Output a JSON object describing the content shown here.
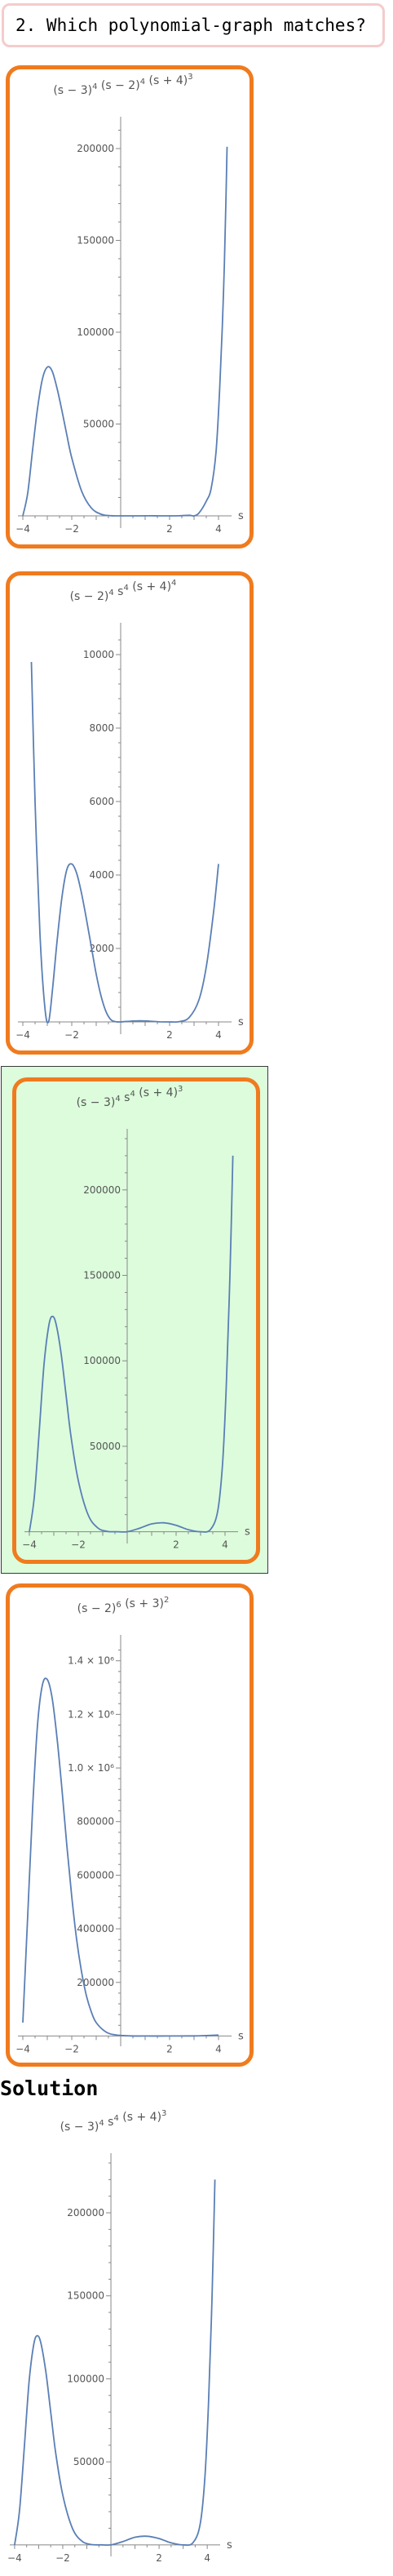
{
  "question": {
    "text": "2. Which polynomial-graph matches?"
  },
  "colors": {
    "curve": "#5a7fb5",
    "card_border": "#f07b1e",
    "selected_bg": "#dcfcdc",
    "question_border": "#f4cccc"
  },
  "options": [
    {
      "label_base": [
        "(s − 3)",
        "(s − 2)",
        "(s + 4)"
      ],
      "label_exp": [
        "4",
        "4",
        "3"
      ],
      "selected": false,
      "chart_data": {
        "type": "line",
        "xlabel": "s",
        "xlim": [
          -4.2,
          4.4
        ],
        "ylim": [
          -4000,
          212000
        ],
        "x_ticks": [
          -4,
          -2,
          2,
          4
        ],
        "y_ticks": [
          50000,
          100000,
          150000,
          200000
        ],
        "y_tick_labels": [
          "50000",
          "100000",
          "150000",
          "200000"
        ],
        "points": [
          [
            -4,
            0
          ],
          [
            -3.8,
            12400
          ],
          [
            -3.6,
            36000
          ],
          [
            -3.4,
            58400
          ],
          [
            -3.2,
            74500
          ],
          [
            -3,
            81000
          ],
          [
            -2.8,
            78800
          ],
          [
            -2.6,
            69400
          ],
          [
            -2.4,
            57200
          ],
          [
            -2.2,
            44000
          ],
          [
            -2,
            31600
          ],
          [
            -1.6,
            13600
          ],
          [
            -1.2,
            4300
          ],
          [
            -0.8,
            900
          ],
          [
            -0.4,
            90
          ],
          [
            0,
            0
          ],
          [
            0.4,
            10
          ],
          [
            0.8,
            20
          ],
          [
            1.2,
            30
          ],
          [
            1.6,
            10
          ],
          [
            2,
            0
          ],
          [
            2.4,
            40
          ],
          [
            2.8,
            300
          ],
          [
            3,
            0
          ],
          [
            3.2,
            1500
          ],
          [
            3.5,
            8000
          ],
          [
            3.7,
            15000
          ],
          [
            3.9,
            35000
          ],
          [
            4.05,
            70000
          ],
          [
            4.2,
            120000
          ],
          [
            4.3,
            170000
          ],
          [
            4.35,
            201000
          ]
        ]
      }
    },
    {
      "label_base": [
        "(s − 2)",
        "s",
        "(s + 4)"
      ],
      "label_exp": [
        "4",
        "4",
        "4"
      ],
      "selected": false,
      "chart_data": {
        "type": "line",
        "xlabel": "s",
        "xlim": [
          -4.2,
          4.4
        ],
        "ylim": [
          -200,
          10600
        ],
        "x_ticks": [
          -4,
          -2,
          2,
          4
        ],
        "y_ticks": [
          2000,
          4000,
          6000,
          8000,
          10000
        ],
        "y_tick_labels": [
          "2000",
          "4000",
          "6000",
          "8000",
          "10000"
        ],
        "points": [
          [
            -3.65,
            9800
          ],
          [
            -3.5,
            6000
          ],
          [
            -3.3,
            2400
          ],
          [
            -3.1,
            400
          ],
          [
            -2.95,
            0
          ],
          [
            -2.8,
            800
          ],
          [
            -2.6,
            2200
          ],
          [
            -2.4,
            3400
          ],
          [
            -2.2,
            4150
          ],
          [
            -2,
            4300
          ],
          [
            -1.8,
            4050
          ],
          [
            -1.6,
            3500
          ],
          [
            -1.4,
            2800
          ],
          [
            -1.2,
            2050
          ],
          [
            -1,
            1300
          ],
          [
            -0.8,
            700
          ],
          [
            -0.6,
            280
          ],
          [
            -0.4,
            60
          ],
          [
            -0.2,
            5
          ],
          [
            0,
            0
          ],
          [
            0.4,
            20
          ],
          [
            0.8,
            30
          ],
          [
            1.2,
            20
          ],
          [
            1.6,
            3
          ],
          [
            2,
            0
          ],
          [
            2.4,
            8
          ],
          [
            2.8,
            120
          ],
          [
            3.2,
            600
          ],
          [
            3.5,
            1500
          ],
          [
            3.8,
            3000
          ],
          [
            4,
            4300
          ]
        ]
      }
    },
    {
      "label_base": [
        "(s − 3)",
        "s",
        "(s + 4)"
      ],
      "label_exp": [
        "4",
        "4",
        "3"
      ],
      "selected": true,
      "chart_data": {
        "type": "line",
        "xlabel": "s",
        "xlim": [
          -4.2,
          4.4
        ],
        "ylim": [
          -4000,
          230000
        ],
        "x_ticks": [
          -4,
          -2,
          2,
          4
        ],
        "y_ticks": [
          50000,
          100000,
          150000,
          200000
        ],
        "y_tick_labels": [
          "50000",
          "100000",
          "150000",
          "200000"
        ],
        "points": [
          [
            -4,
            0
          ],
          [
            -3.8,
            20000
          ],
          [
            -3.6,
            58000
          ],
          [
            -3.4,
            98000
          ],
          [
            -3.2,
            121000
          ],
          [
            -3.05,
            126000
          ],
          [
            -2.9,
            121000
          ],
          [
            -2.7,
            104000
          ],
          [
            -2.5,
            80000
          ],
          [
            -2.3,
            56000
          ],
          [
            -2,
            30000
          ],
          [
            -1.6,
            10000
          ],
          [
            -1.2,
            2200
          ],
          [
            -0.8,
            200
          ],
          [
            -0.4,
            10
          ],
          [
            0,
            0
          ],
          [
            0.5,
            2000
          ],
          [
            1,
            4600
          ],
          [
            1.5,
            5200
          ],
          [
            2,
            3800
          ],
          [
            2.5,
            1200
          ],
          [
            3,
            0
          ],
          [
            3.4,
            1200
          ],
          [
            3.7,
            12000
          ],
          [
            3.9,
            40000
          ],
          [
            4.05,
            85000
          ],
          [
            4.2,
            150000
          ],
          [
            4.32,
            220000
          ]
        ]
      }
    },
    {
      "label_base": [
        "(s − 2)",
        "(s + 3)"
      ],
      "label_exp": [
        "6",
        "2"
      ],
      "selected": false,
      "chart_data": {
        "type": "line",
        "xlabel": "s",
        "xlim": [
          -4.2,
          4.4
        ],
        "ylim": [
          -20000,
          1460000
        ],
        "x_ticks": [
          -4,
          -2,
          2,
          4
        ],
        "y_ticks": [
          200000,
          400000,
          600000,
          800000,
          1000000,
          1200000,
          1400000
        ],
        "y_tick_labels": [
          "200000",
          "400000",
          "600000",
          "800000",
          "1.0 × 10⁶",
          "1.2 × 10⁶",
          "1.4 × 10⁶"
        ],
        "points": [
          [
            -4,
            50000
          ],
          [
            -3.8,
            450000
          ],
          [
            -3.6,
            850000
          ],
          [
            -3.4,
            1160000
          ],
          [
            -3.2,
            1310000
          ],
          [
            -3,
            1330000
          ],
          [
            -2.8,
            1260000
          ],
          [
            -2.6,
            1110000
          ],
          [
            -2.4,
            920000
          ],
          [
            -2.2,
            710000
          ],
          [
            -2,
            520000
          ],
          [
            -1.8,
            360000
          ],
          [
            -1.6,
            240000
          ],
          [
            -1.4,
            150000
          ],
          [
            -1.2,
            90000
          ],
          [
            -1,
            50000
          ],
          [
            -0.6,
            15000
          ],
          [
            -0.2,
            4000
          ],
          [
            0.4,
            500
          ],
          [
            1,
            50
          ],
          [
            2,
            0
          ],
          [
            3,
            400
          ],
          [
            3.6,
            2000
          ],
          [
            4,
            3500
          ]
        ]
      }
    }
  ],
  "solution": {
    "heading": "Solution",
    "label_base": [
      "(s − 3)",
      "s",
      "(s + 4)"
    ],
    "label_exp": [
      "4",
      "4",
      "3"
    ],
    "chart_data": {
      "type": "line",
      "xlabel": "s",
      "xlim": [
        -4.2,
        4.4
      ],
      "ylim": [
        -4000,
        230000
      ],
      "x_ticks": [
        -4,
        -2,
        2,
        4
      ],
      "y_ticks": [
        50000,
        100000,
        150000,
        200000
      ],
      "y_tick_labels": [
        "50000",
        "100000",
        "150000",
        "200000"
      ],
      "points": [
        [
          -4,
          0
        ],
        [
          -3.8,
          20000
        ],
        [
          -3.6,
          58000
        ],
        [
          -3.4,
          98000
        ],
        [
          -3.2,
          121000
        ],
        [
          -3.05,
          126000
        ],
        [
          -2.9,
          121000
        ],
        [
          -2.7,
          104000
        ],
        [
          -2.5,
          80000
        ],
        [
          -2.3,
          56000
        ],
        [
          -2,
          30000
        ],
        [
          -1.6,
          10000
        ],
        [
          -1.2,
          2200
        ],
        [
          -0.8,
          200
        ],
        [
          -0.4,
          10
        ],
        [
          0,
          0
        ],
        [
          0.5,
          2000
        ],
        [
          1,
          4600
        ],
        [
          1.5,
          5200
        ],
        [
          2,
          3800
        ],
        [
          2.5,
          1200
        ],
        [
          3,
          0
        ],
        [
          3.4,
          1200
        ],
        [
          3.7,
          12000
        ],
        [
          3.9,
          40000
        ],
        [
          4.05,
          85000
        ],
        [
          4.2,
          150000
        ],
        [
          4.32,
          220000
        ]
      ]
    }
  }
}
